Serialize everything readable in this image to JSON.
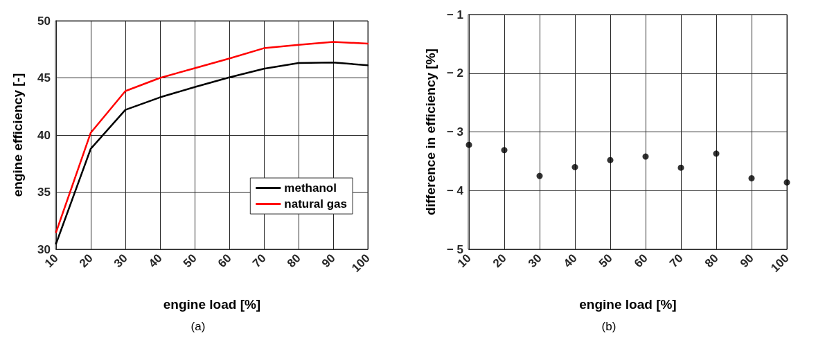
{
  "chart_data": [
    {
      "type": "line",
      "xlabel": "engine load [%]",
      "ylabel": "engine efficiency [-]",
      "x": [
        10,
        20,
        30,
        40,
        50,
        60,
        70,
        80,
        90,
        100
      ],
      "series": [
        {
          "name": "methanol",
          "color": "#000000",
          "values": [
            30.5,
            38.8,
            42.2,
            43.3,
            44.2,
            45.05,
            45.8,
            46.3,
            46.35,
            46.1
          ]
        },
        {
          "name": "natural gas",
          "color": "#ff0000",
          "values": [
            31.5,
            40.2,
            43.85,
            45.0,
            45.85,
            46.7,
            47.6,
            47.9,
            48.15,
            48.0
          ]
        }
      ],
      "xlim": [
        10,
        100
      ],
      "xticks": [
        10,
        20,
        30,
        40,
        50,
        60,
        70,
        80,
        90,
        100
      ],
      "ylim": [
        30,
        50
      ],
      "yticks": [
        30,
        35,
        40,
        45,
        50
      ],
      "grid": true,
      "legend": "bottom right",
      "marker": "none",
      "line_style": "solid",
      "annotations": [
        "(a)"
      ]
    },
    {
      "type": "scatter",
      "xlabel": "engine load [%]",
      "ylabel": "difference in efficiency [%]",
      "x": [
        10,
        20,
        30,
        40,
        50,
        60,
        70,
        80,
        90,
        100
      ],
      "series": [
        {
          "color": "#000000",
          "values": [
            -3.22,
            -3.31,
            -3.75,
            -3.6,
            -3.48,
            -3.42,
            -3.61,
            -3.37,
            -3.79,
            -3.86
          ]
        }
      ],
      "xlim": [
        10,
        100
      ],
      "xticks": [
        10,
        20,
        30,
        40,
        50,
        60,
        70,
        80,
        90,
        100
      ],
      "ylim": [
        -5,
        -1
      ],
      "yticks": [
        {
          "value": -5,
          "label": "− 5"
        },
        {
          "value": -4,
          "label": "− 4"
        },
        {
          "value": -3,
          "label": "− 3"
        },
        {
          "value": -2,
          "label": "− 2"
        },
        {
          "value": -1,
          "label": "− 1"
        }
      ],
      "grid": true,
      "marker": "circle",
      "annotations": [
        "(b)"
      ]
    }
  ]
}
